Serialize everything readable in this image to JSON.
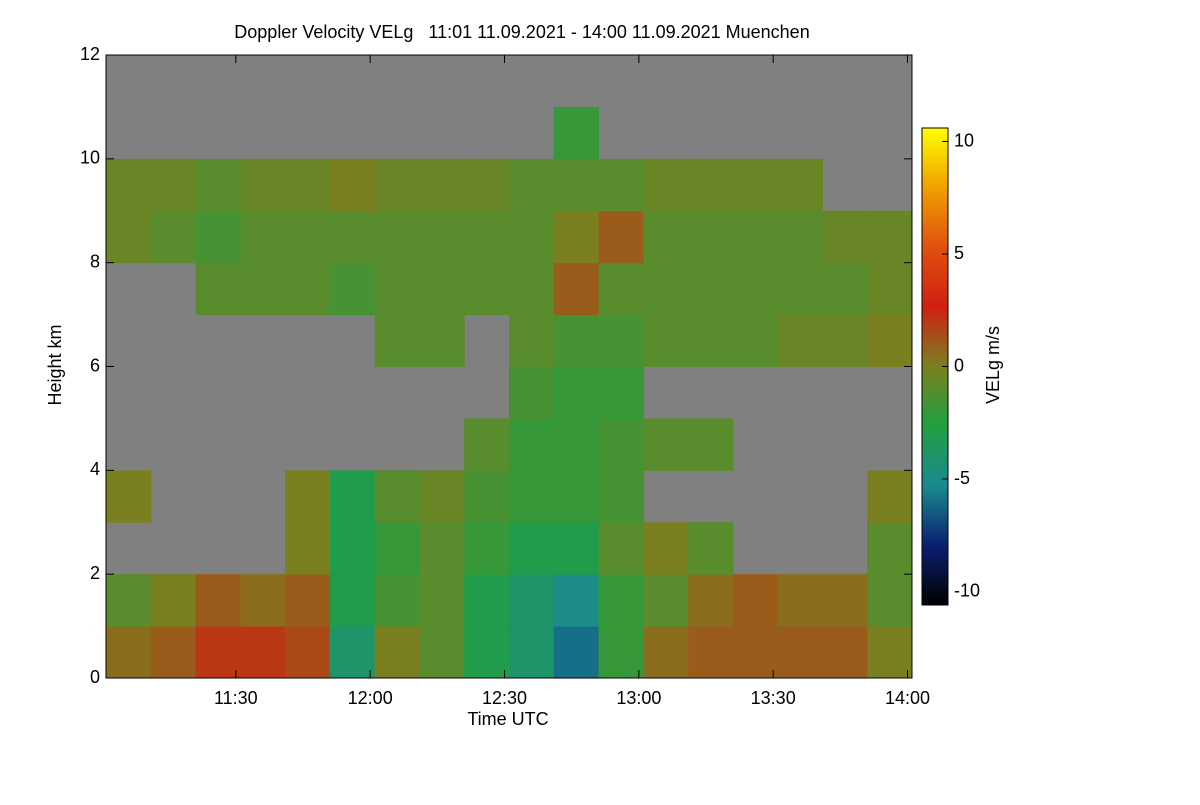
{
  "chart_data": {
    "type": "heatmap",
    "title": "Doppler Velocity VELg   11:01 11.09.2021 - 14:00 11.09.2021 Muenchen",
    "xlabel": "Time UTC",
    "ylabel": "Height km",
    "colorbar_label": "VELg m/s",
    "xbins": [
      11.0167,
      11.1833,
      11.35,
      11.5167,
      11.6833,
      11.85,
      12.0167,
      12.1833,
      12.35,
      12.5167,
      12.6833,
      12.85,
      13.0167,
      13.1833,
      13.35,
      13.5167,
      13.6833,
      13.85,
      14.0167
    ],
    "ybins": [
      0,
      1,
      2,
      3,
      4,
      5,
      6,
      7,
      8,
      9,
      10,
      11,
      12
    ],
    "z": [
      [
        0.5,
        -1,
        null,
        0,
        null,
        null,
        null,
        null,
        -0.5,
        -0.5,
        null,
        null
      ],
      [
        1,
        0,
        null,
        null,
        null,
        null,
        null,
        null,
        -1,
        -0.5,
        null,
        null
      ],
      [
        2,
        1,
        null,
        null,
        null,
        null,
        null,
        -1,
        -1.5,
        -1,
        null,
        null
      ],
      [
        2,
        0.5,
        null,
        null,
        null,
        null,
        null,
        -1,
        -1,
        -0.5,
        null,
        null
      ],
      [
        1.5,
        1,
        0,
        0,
        null,
        null,
        null,
        -1,
        -1,
        -0.5,
        null,
        null
      ],
      [
        -4,
        -3,
        -3,
        -3,
        null,
        null,
        null,
        -1.5,
        -1,
        0,
        null,
        null
      ],
      [
        0,
        -1.5,
        -2,
        -1,
        null,
        null,
        -1,
        -1,
        -1,
        -0.5,
        null,
        null
      ],
      [
        -1,
        -1,
        -1,
        -0.5,
        null,
        null,
        -1,
        -1,
        -1,
        -0.5,
        null,
        null
      ],
      [
        -3,
        -3,
        -2,
        -1.5,
        -1,
        null,
        null,
        -1,
        -1,
        -0.5,
        null,
        null
      ],
      [
        -4,
        -4,
        -3,
        -2,
        -2,
        -1.5,
        -1,
        -1,
        -1,
        -1,
        null,
        null
      ],
      [
        -6,
        -5,
        -3,
        -2,
        -2,
        -2,
        -1.5,
        1,
        0,
        -1,
        -2,
        null
      ],
      [
        -2,
        -2,
        -1,
        -1.5,
        -1.5,
        -2,
        -1.5,
        -1,
        1,
        -1,
        null,
        null
      ],
      [
        0.5,
        -1,
        0,
        null,
        -1,
        null,
        -1,
        -1,
        -1,
        -0.5,
        null,
        null
      ],
      [
        1,
        0.5,
        -1,
        null,
        -1,
        null,
        -1,
        -1,
        -1,
        -0.5,
        null,
        null
      ],
      [
        1,
        1,
        null,
        null,
        null,
        null,
        -1,
        -1,
        -1,
        -0.5,
        null,
        null
      ],
      [
        1,
        0.5,
        null,
        null,
        null,
        null,
        -0.5,
        -1,
        -1,
        -0.5,
        null,
        null
      ],
      [
        1,
        0.5,
        null,
        null,
        null,
        null,
        -0.5,
        -1,
        -0.5,
        null,
        null,
        null
      ],
      [
        0,
        -1,
        -1,
        0,
        null,
        null,
        0,
        -0.5,
        -0.5,
        null,
        null,
        null
      ]
    ],
    "xlim": [
      11.0167,
      14.0167
    ],
    "xticks": [
      {
        "value": 11.5,
        "label": "11:30"
      },
      {
        "value": 12,
        "label": "12:00"
      },
      {
        "value": 12.5,
        "label": "12:30"
      },
      {
        "value": 13,
        "label": "13:00"
      },
      {
        "value": 13.5,
        "label": "13:30"
      },
      {
        "value": 14,
        "label": "14:00"
      }
    ],
    "ylim": [
      0,
      12
    ],
    "yticks": [
      0,
      2,
      4,
      6,
      8,
      10,
      12
    ],
    "zlim": [
      -10.6,
      10.6
    ],
    "zticks": [
      -10,
      -5,
      0,
      5,
      10
    ],
    "colors": [
      "#000000",
      "#0a2070",
      "#1a8a90",
      "#20a040",
      "#7a8020",
      "#d02010",
      "#e05010",
      "#f0a000",
      "#ffff00"
    ],
    "missing_color": "#808080"
  }
}
